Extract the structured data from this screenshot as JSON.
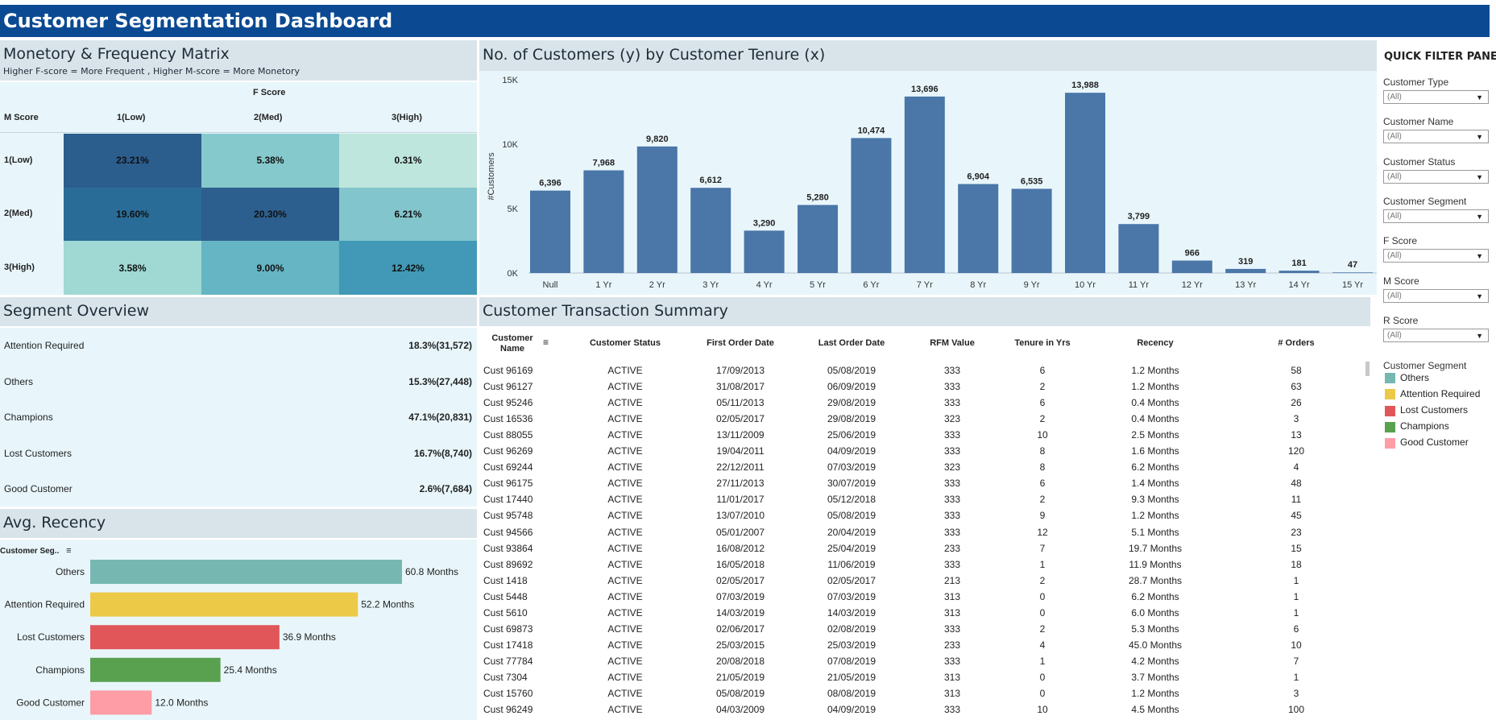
{
  "header": {
    "title": "Customer Segmentation Dashboard"
  },
  "matrix": {
    "title": "Monetory & Frequency Matrix",
    "subtitle": "Higher F-score = More Frequent , Higher M-score = More Monetory",
    "f_header": "F Score",
    "m_header": "M Score",
    "col_labels": [
      "1(Low)",
      "2(Med)",
      "3(High)"
    ],
    "row_labels": [
      "1(Low)",
      "2(Med)",
      "3(High)"
    ],
    "cells": [
      [
        "23.21%",
        "5.38%",
        "0.31%"
      ],
      [
        "19.60%",
        "20.30%",
        "6.21%"
      ],
      [
        "3.58%",
        "9.00%",
        "12.42%"
      ]
    ],
    "cell_colors": [
      [
        "#2b5d8d",
        "#86c9cd",
        "#bfe6dc"
      ],
      [
        "#2a6c98",
        "#2c5f8e",
        "#83c5cc"
      ],
      [
        "#a0d9d3",
        "#66b5c4",
        "#4199b7"
      ]
    ]
  },
  "chart_data": {
    "type": "bar",
    "title": "No. of Customers (y) by Customer Tenure (x)",
    "ylabel": "#Customers",
    "xlabel": "",
    "categories": [
      "Null",
      "1 Yr",
      "2 Yr",
      "3 Yr",
      "4 Yr",
      "5 Yr",
      "6 Yr",
      "7 Yr",
      "8 Yr",
      "9 Yr",
      "10 Yr",
      "11 Yr",
      "12 Yr",
      "13 Yr",
      "14 Yr",
      "15 Yr"
    ],
    "values": [
      6396,
      7968,
      9820,
      6612,
      3290,
      5280,
      10474,
      13696,
      6904,
      6535,
      13988,
      3799,
      966,
      319,
      181,
      47
    ],
    "data_labels": [
      "6,396",
      "7,968",
      "9,820",
      "6,612",
      "3,290",
      "5,280",
      "10,474",
      "13,696",
      "6,904",
      "6,535",
      "13,988",
      "3,799",
      "966",
      "319",
      "181",
      "47"
    ],
    "ylim": [
      0,
      15000
    ],
    "y_ticks": [
      0,
      5000,
      10000,
      15000
    ],
    "y_tick_labels": [
      "0K",
      "5K",
      "10K",
      "15K"
    ],
    "bar_color": "#4a76a8"
  },
  "segment_overview": {
    "title": "Segment Overview",
    "rows": [
      {
        "name": "Attention Required",
        "value": "18.3%(31,572)"
      },
      {
        "name": "Others",
        "value": "15.3%(27,448)"
      },
      {
        "name": "Champions",
        "value": "47.1%(20,831)"
      },
      {
        "name": "Lost Customers",
        "value": "16.7%(8,740)"
      },
      {
        "name": "Good Customer",
        "value": "2.6%(7,684)"
      }
    ]
  },
  "recency": {
    "title": "Avg. Recency",
    "axis_header": "Customer Seg..",
    "max": 60.8,
    "bars": [
      {
        "name": "Others",
        "value": 60.8,
        "label": "60.8 Months",
        "color": "#76b7b2"
      },
      {
        "name": "Attention Required",
        "value": 52.2,
        "label": "52.2 Months",
        "color": "#edc948"
      },
      {
        "name": "Lost Customers",
        "value": 36.9,
        "label": "36.9 Months",
        "color": "#e15759"
      },
      {
        "name": "Champions",
        "value": 25.4,
        "label": "25.4 Months",
        "color": "#59a14f"
      },
      {
        "name": "Good Customer",
        "value": 12.0,
        "label": "12.0 Months",
        "color": "#ff9da7"
      }
    ]
  },
  "transactions": {
    "title": "Customer Transaction Summary",
    "columns": [
      "Customer Name",
      "Customer Status",
      "First Order Date",
      "Last Order Date",
      "RFM Value",
      "Tenure in Yrs",
      "Recency",
      "# Orders"
    ],
    "rows": [
      [
        "Cust 96169",
        "ACTIVE",
        "17/09/2013",
        "05/08/2019",
        "333",
        "6",
        "1.2 Months",
        "58"
      ],
      [
        "Cust 96127",
        "ACTIVE",
        "31/08/2017",
        "06/09/2019",
        "333",
        "2",
        "1.2 Months",
        "63"
      ],
      [
        "Cust 95246",
        "ACTIVE",
        "05/11/2013",
        "29/08/2019",
        "333",
        "6",
        "0.4 Months",
        "26"
      ],
      [
        "Cust 16536",
        "ACTIVE",
        "02/05/2017",
        "29/08/2019",
        "323",
        "2",
        "0.4 Months",
        "3"
      ],
      [
        "Cust 88055",
        "ACTIVE",
        "13/11/2009",
        "25/06/2019",
        "333",
        "10",
        "2.5 Months",
        "13"
      ],
      [
        "Cust 96269",
        "ACTIVE",
        "19/04/2011",
        "04/09/2019",
        "333",
        "8",
        "1.6 Months",
        "120"
      ],
      [
        "Cust 69244",
        "ACTIVE",
        "22/12/2011",
        "07/03/2019",
        "323",
        "8",
        "6.2 Months",
        "4"
      ],
      [
        "Cust 96175",
        "ACTIVE",
        "27/11/2013",
        "30/07/2019",
        "333",
        "6",
        "1.4 Months",
        "48"
      ],
      [
        "Cust 17440",
        "ACTIVE",
        "11/01/2017",
        "05/12/2018",
        "333",
        "2",
        "9.3 Months",
        "11"
      ],
      [
        "Cust 95748",
        "ACTIVE",
        "13/07/2010",
        "05/08/2019",
        "333",
        "9",
        "1.2 Months",
        "45"
      ],
      [
        "Cust 94566",
        "ACTIVE",
        "05/01/2007",
        "20/04/2019",
        "333",
        "12",
        "5.1 Months",
        "23"
      ],
      [
        "Cust 93864",
        "ACTIVE",
        "16/08/2012",
        "25/04/2019",
        "233",
        "7",
        "19.7 Months",
        "15"
      ],
      [
        "Cust 89692",
        "ACTIVE",
        "16/05/2018",
        "11/06/2019",
        "333",
        "1",
        "11.9 Months",
        "18"
      ],
      [
        "Cust 1418",
        "ACTIVE",
        "02/05/2017",
        "02/05/2017",
        "213",
        "2",
        "28.7 Months",
        "1"
      ],
      [
        "Cust 5448",
        "ACTIVE",
        "07/03/2019",
        "07/03/2019",
        "313",
        "0",
        "6.2 Months",
        "1"
      ],
      [
        "Cust 5610",
        "ACTIVE",
        "14/03/2019",
        "14/03/2019",
        "313",
        "0",
        "6.0 Months",
        "1"
      ],
      [
        "Cust 69873",
        "ACTIVE",
        "02/06/2017",
        "02/08/2019",
        "333",
        "2",
        "5.3 Months",
        "6"
      ],
      [
        "Cust 17418",
        "ACTIVE",
        "25/03/2015",
        "25/03/2019",
        "233",
        "4",
        "45.0 Months",
        "10"
      ],
      [
        "Cust 77784",
        "ACTIVE",
        "20/08/2018",
        "07/08/2019",
        "333",
        "1",
        "4.2 Months",
        "7"
      ],
      [
        "Cust 7304",
        "ACTIVE",
        "21/05/2019",
        "21/05/2019",
        "313",
        "0",
        "3.7 Months",
        "1"
      ],
      [
        "Cust 15760",
        "ACTIVE",
        "05/08/2019",
        "08/08/2019",
        "313",
        "0",
        "1.2 Months",
        "3"
      ],
      [
        "Cust 96249",
        "ACTIVE",
        "04/03/2009",
        "04/09/2019",
        "333",
        "10",
        "4.5 Months",
        "100"
      ]
    ]
  },
  "filter_pane": {
    "title": "QUICK FILTER PANE",
    "filters": [
      {
        "label": "Customer Type",
        "value": "(All)"
      },
      {
        "label": "Customer Name",
        "value": "(All)"
      },
      {
        "label": "Customer Status",
        "value": "(All)"
      },
      {
        "label": "Customer Segment",
        "value": "(All)"
      },
      {
        "label": "F Score",
        "value": "(All)"
      },
      {
        "label": "M Score",
        "value": "(All)"
      },
      {
        "label": "R Score",
        "value": "(All)"
      }
    ],
    "legend_title": "Customer Segment",
    "legend": [
      {
        "name": "Others",
        "color": "#76b7b2"
      },
      {
        "name": "Attention Required",
        "color": "#edc948"
      },
      {
        "name": "Lost Customers",
        "color": "#e15759"
      },
      {
        "name": "Champions",
        "color": "#59a14f"
      },
      {
        "name": "Good Customer",
        "color": "#ff9da7"
      }
    ]
  }
}
